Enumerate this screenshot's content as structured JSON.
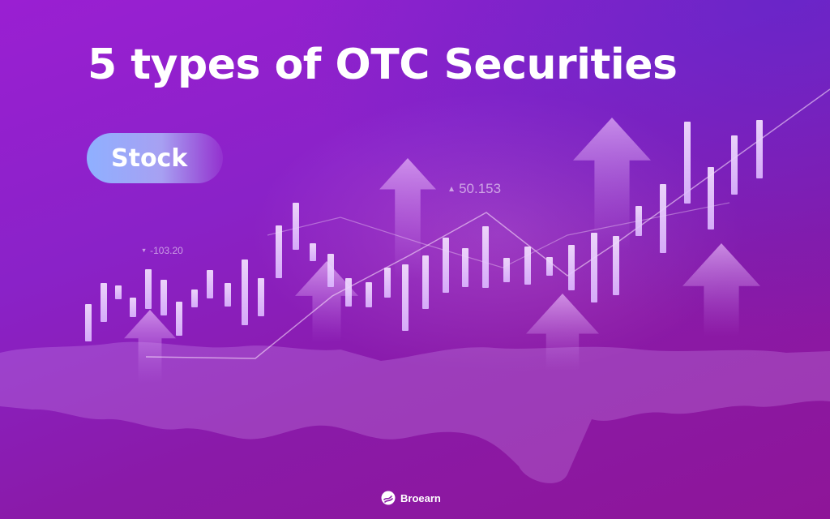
{
  "title": "5 types of OTC Securities",
  "category_pill": "Stock",
  "tickers": {
    "up": {
      "value": "50.153",
      "icon": "triangle-up-icon"
    },
    "down": {
      "value": "-103.20",
      "icon": "triangle-down-icon"
    }
  },
  "brand": {
    "name": "Broearn",
    "icon": "broearn-logo-icon"
  },
  "colors": {
    "background_start": "#9a1fd2",
    "background_end": "#8e1598",
    "accent_blue": "#8fb0ff",
    "candle": "#f0d8ff",
    "text": "#ffffff"
  },
  "chart_data": {
    "type": "candlestick",
    "decorative": true,
    "trend": "rising",
    "ticker_labels": [
      "50.153",
      "-103.20"
    ]
  }
}
